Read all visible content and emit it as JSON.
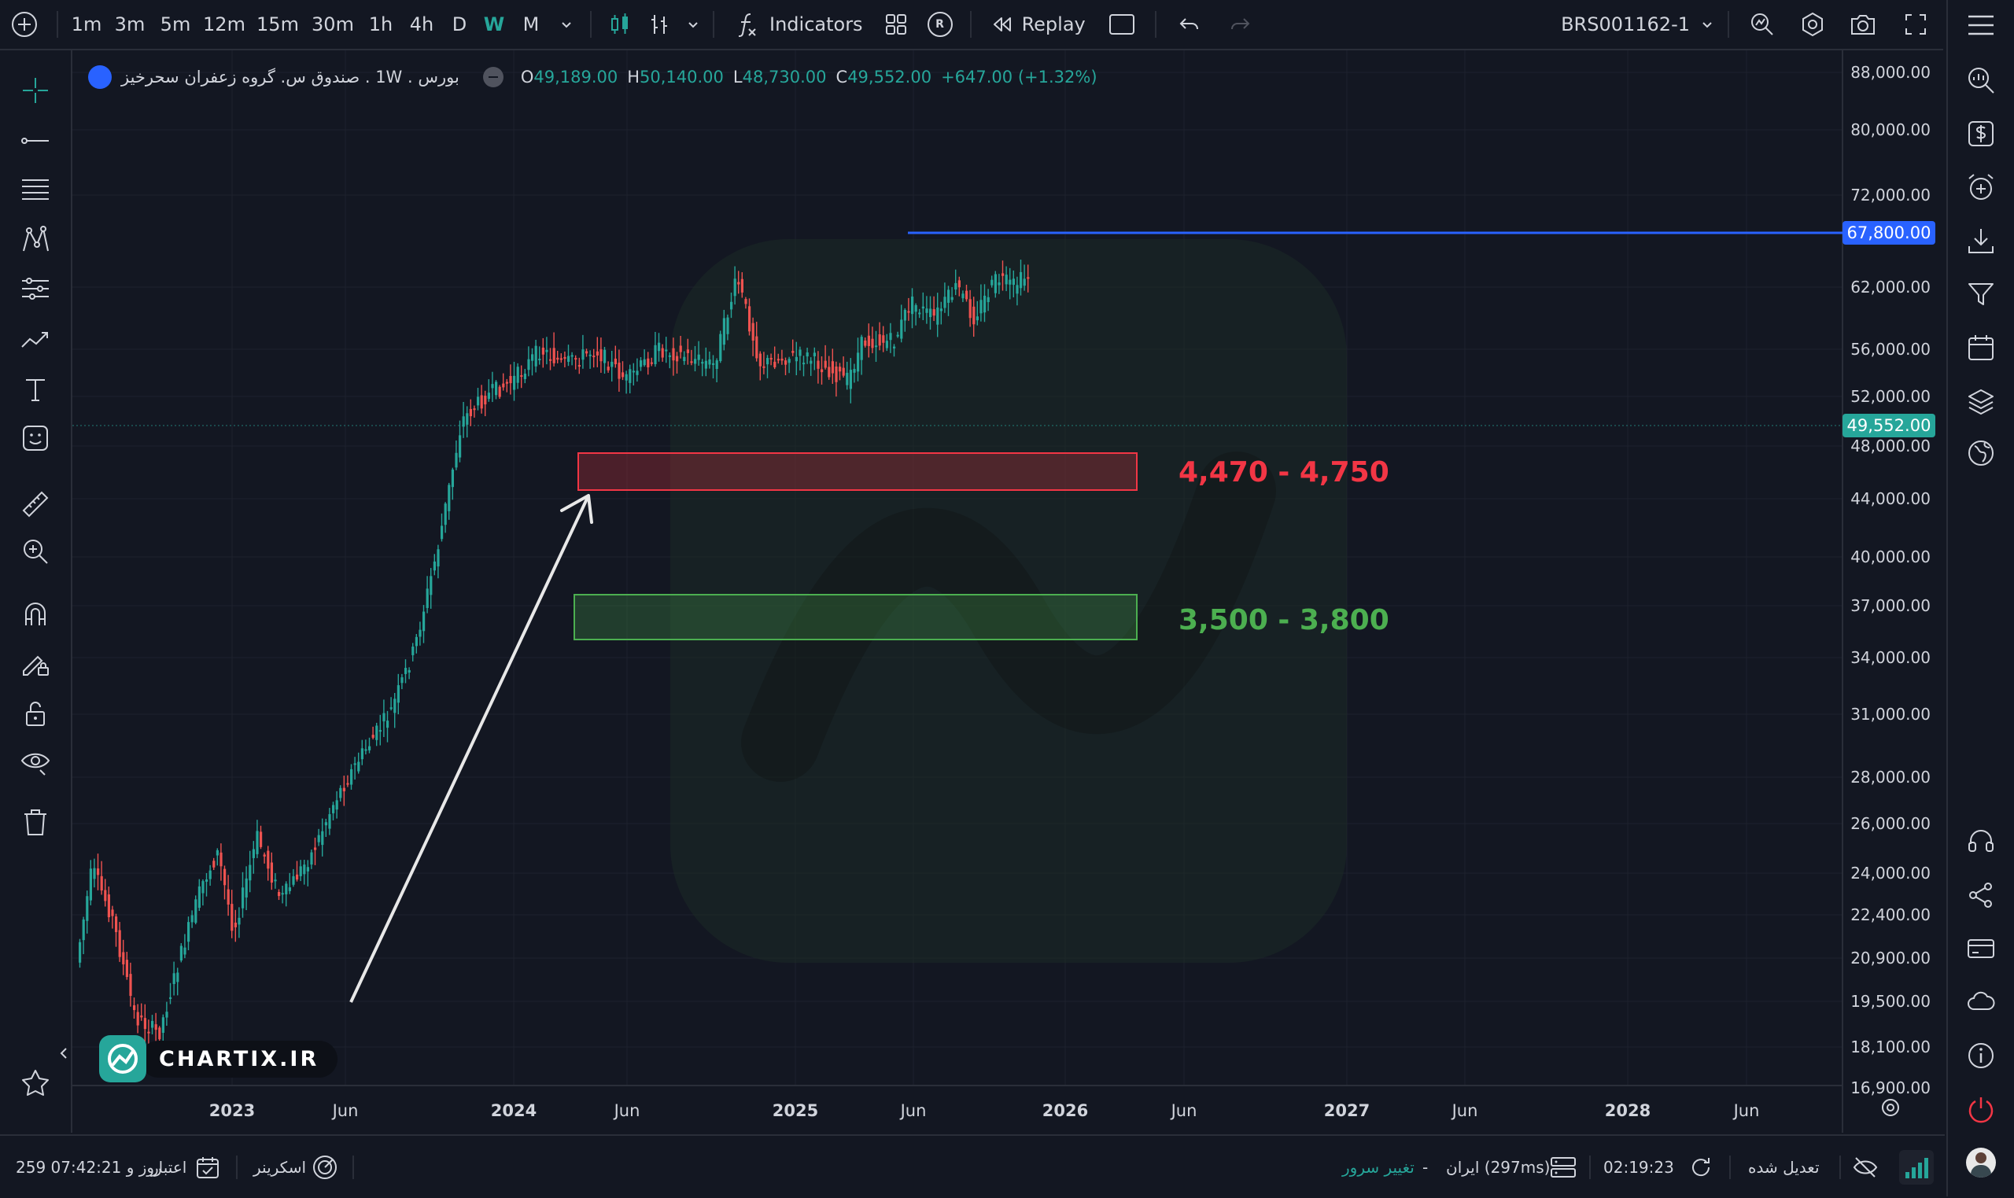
{
  "timeframes": [
    "1m",
    "3m",
    "5m",
    "12m",
    "15m",
    "30m",
    "1h",
    "4h",
    "D",
    "W",
    "M"
  ],
  "active_timeframe": "W",
  "toolbar": {
    "indicators_label": "Indicators",
    "replay_label": "Replay",
    "symbol": "BRS001162-1",
    "r_badge": "R"
  },
  "legend": {
    "title": "بورس . 1W . صندوق س. گروه زعفران سحرخیز",
    "open_label": "O",
    "open": "49,189.00",
    "high_label": "H",
    "high": "50,140.00",
    "low_label": "L",
    "low": "48,730.00",
    "close_label": "C",
    "close": "49,552.00",
    "change": "+647.00 (+1.32%)"
  },
  "price_axis": [
    "88,000.00",
    "80,000.00",
    "72,000.00",
    "62,000.00",
    "56,000.00",
    "52,000.00",
    "48,000.00",
    "44,000.00",
    "40,000.00",
    "37,000.00",
    "34,000.00",
    "31,000.00",
    "28,000.00",
    "26,000.00",
    "24,000.00",
    "22,400.00",
    "20,900.00",
    "19,500.00",
    "18,100.00",
    "16,900.00"
  ],
  "time_axis": [
    "2023",
    "Jun",
    "2024",
    "Jun",
    "2025",
    "Jun",
    "2026",
    "Jun",
    "2027",
    "Jun",
    "2028",
    "Jun"
  ],
  "price_tags": {
    "level_line": "67,800.00",
    "last_price": "49,552.00"
  },
  "zones": [
    {
      "label": "4,470 - 4,750",
      "color": "#f23645"
    },
    {
      "label": "3,500 - 3,800",
      "color": "#4caf50"
    }
  ],
  "watermark": "CHARTIX.IR",
  "status_bar": {
    "subscription_label": "اعتبار",
    "subscription_value": "259 روز و 07:42:21",
    "screener_label": "اسکرینر",
    "change_server_label": "تغییر سرور",
    "server": "ایران (297ms)",
    "dash": "-",
    "time": "02:19:23",
    "adjusted_label": "تعدیل شده"
  },
  "colors": {
    "up": "#26a69a",
    "down": "#ef5350",
    "level_line": "#2962ff",
    "resistance_zone": "#f23645",
    "support_zone": "#4caf50",
    "background": "#131722"
  }
}
